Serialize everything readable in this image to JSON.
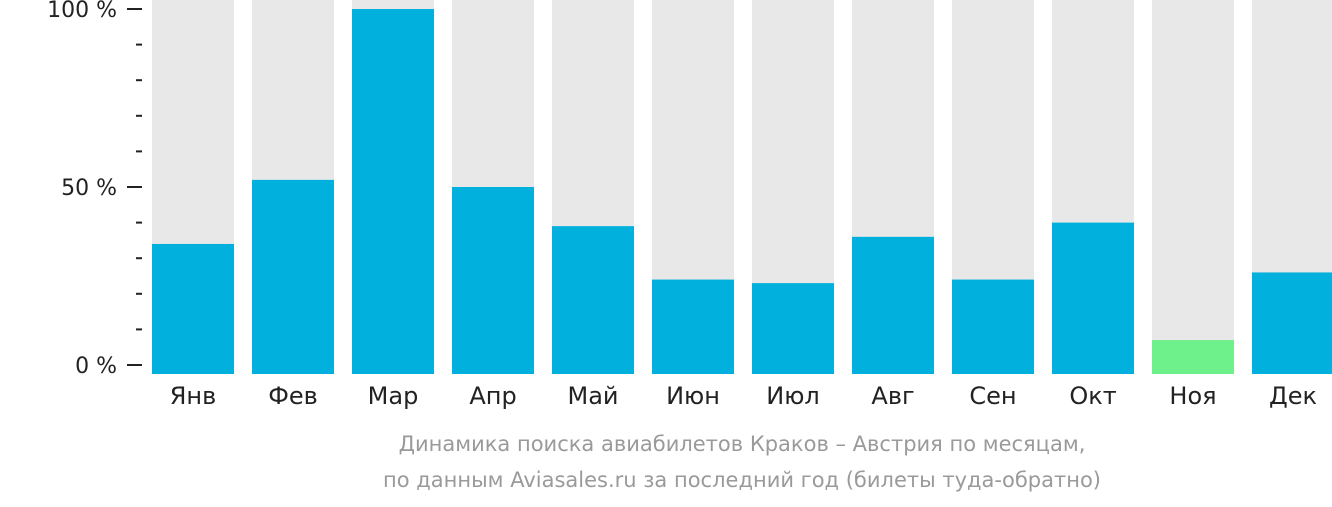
{
  "chart_data": {
    "type": "bar",
    "categories": [
      "Янв",
      "Фев",
      "Мар",
      "Апр",
      "Май",
      "Июн",
      "Июл",
      "Авг",
      "Сен",
      "Окт",
      "Ноя",
      "Дек"
    ],
    "values": [
      34,
      52,
      100,
      50,
      39,
      24,
      23,
      36,
      24,
      40,
      7,
      26
    ],
    "ylim": [
      0,
      100
    ],
    "yticks": [
      {
        "value": 0,
        "label": "0 %"
      },
      {
        "value": 50,
        "label": "50 %"
      },
      {
        "value": 100,
        "label": "100 %"
      }
    ],
    "minor_tick_step": 10,
    "highlight_index": 10,
    "colors": {
      "bar": "#02b0dd",
      "highlight": "#6ef08a",
      "background_bar": "#e8e8e8",
      "axis": "#222222",
      "caption": "#9a9a9a"
    },
    "caption": [
      "Динамика поиска авиабилетов Краков – Австрия по месяцам,",
      "по данным Aviasales.ru за последний год (билеты туда-обратно)"
    ]
  }
}
